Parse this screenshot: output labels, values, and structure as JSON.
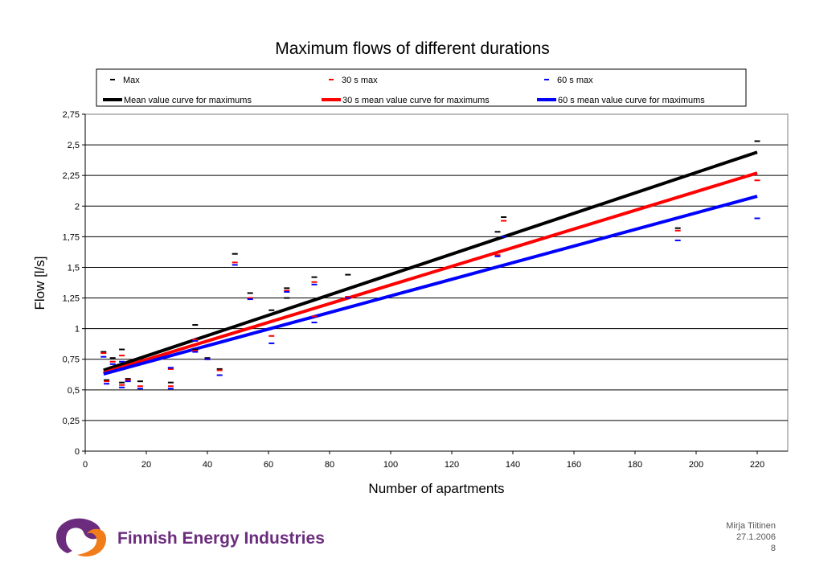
{
  "chart_data": {
    "type": "scatter",
    "title": "Maximum flows of different durations",
    "xlabel": "Number of apartments",
    "ylabel": "Flow [l/s]",
    "xlim": [
      0,
      230
    ],
    "ylim": [
      0,
      2.75
    ],
    "x_ticks": [
      0,
      20,
      40,
      60,
      80,
      100,
      120,
      140,
      160,
      180,
      200,
      220
    ],
    "y_ticks": [
      "0",
      "0,25",
      "0,5",
      "0,75",
      "1",
      "1,25",
      "1,5",
      "1,75",
      "2",
      "2,25",
      "2,5",
      "2,75"
    ],
    "grid": "horizontal",
    "legend_position": "top",
    "series": [
      {
        "name": "Max",
        "kind": "markers",
        "color": "#000000",
        "points": [
          [
            6,
            0.81
          ],
          [
            7,
            0.58
          ],
          [
            9,
            0.76
          ],
          [
            12,
            0.83
          ],
          [
            12,
            0.56
          ],
          [
            14,
            0.59
          ],
          [
            18,
            0.57
          ],
          [
            28,
            0.68
          ],
          [
            28,
            0.56
          ],
          [
            36,
            1.03
          ],
          [
            36,
            0.83
          ],
          [
            40,
            0.76
          ],
          [
            44,
            0.67
          ],
          [
            49,
            1.61
          ],
          [
            54,
            1.29
          ],
          [
            61,
            1.15
          ],
          [
            66,
            1.33
          ],
          [
            66,
            1.25
          ],
          [
            75,
            1.42
          ],
          [
            86,
            1.44
          ],
          [
            135,
            1.79
          ],
          [
            137,
            1.91
          ],
          [
            194,
            1.82
          ],
          [
            220,
            2.53
          ]
        ]
      },
      {
        "name": "30 s max",
        "kind": "markers",
        "color": "#ff0000",
        "points": [
          [
            6,
            0.8
          ],
          [
            7,
            0.57
          ],
          [
            9,
            0.73
          ],
          [
            12,
            0.78
          ],
          [
            12,
            0.54
          ],
          [
            14,
            0.58
          ],
          [
            18,
            0.53
          ],
          [
            28,
            0.67
          ],
          [
            28,
            0.53
          ],
          [
            36,
            0.91
          ],
          [
            36,
            0.82
          ],
          [
            40,
            0.75
          ],
          [
            44,
            0.66
          ],
          [
            49,
            1.54
          ],
          [
            54,
            1.25
          ],
          [
            61,
            0.94
          ],
          [
            66,
            1.31
          ],
          [
            75,
            1.38
          ],
          [
            75,
            1.1
          ],
          [
            86,
            1.26
          ],
          [
            135,
            1.6
          ],
          [
            137,
            1.88
          ],
          [
            194,
            1.8
          ],
          [
            220,
            2.21
          ]
        ]
      },
      {
        "name": "60 s max",
        "kind": "markers",
        "color": "#0000ff",
        "points": [
          [
            6,
            0.77
          ],
          [
            7,
            0.55
          ],
          [
            9,
            0.71
          ],
          [
            12,
            0.73
          ],
          [
            12,
            0.52
          ],
          [
            14,
            0.57
          ],
          [
            18,
            0.51
          ],
          [
            28,
            0.68
          ],
          [
            28,
            0.51
          ],
          [
            36,
            0.9
          ],
          [
            36,
            0.81
          ],
          [
            40,
            0.75
          ],
          [
            44,
            0.62
          ],
          [
            49,
            1.52
          ],
          [
            54,
            1.24
          ],
          [
            61,
            0.88
          ],
          [
            66,
            1.3
          ],
          [
            75,
            1.36
          ],
          [
            75,
            1.05
          ],
          [
            86,
            1.25
          ],
          [
            135,
            1.59
          ],
          [
            137,
            1.75
          ],
          [
            194,
            1.72
          ],
          [
            220,
            1.9
          ]
        ]
      },
      {
        "name": "Mean value curve for maximums",
        "kind": "line",
        "color": "#000000",
        "points": [
          [
            6,
            0.66
          ],
          [
            220,
            2.44
          ]
        ]
      },
      {
        "name": "30 s mean value curve for maximums",
        "kind": "line",
        "color": "#ff0000",
        "points": [
          [
            6,
            0.64
          ],
          [
            220,
            2.27
          ]
        ]
      },
      {
        "name": "60 s mean value curve for maximums",
        "kind": "line",
        "color": "#0000ff",
        "points": [
          [
            6,
            0.63
          ],
          [
            220,
            2.08
          ]
        ]
      }
    ]
  },
  "logo": {
    "text": "Finnish Energy Industries",
    "colors": {
      "purple": "#6b2c7e",
      "orange": "#f07d1a"
    }
  },
  "footer": {
    "author": "Mirja Tiitinen",
    "date": "27.1.2006",
    "page": "8"
  }
}
